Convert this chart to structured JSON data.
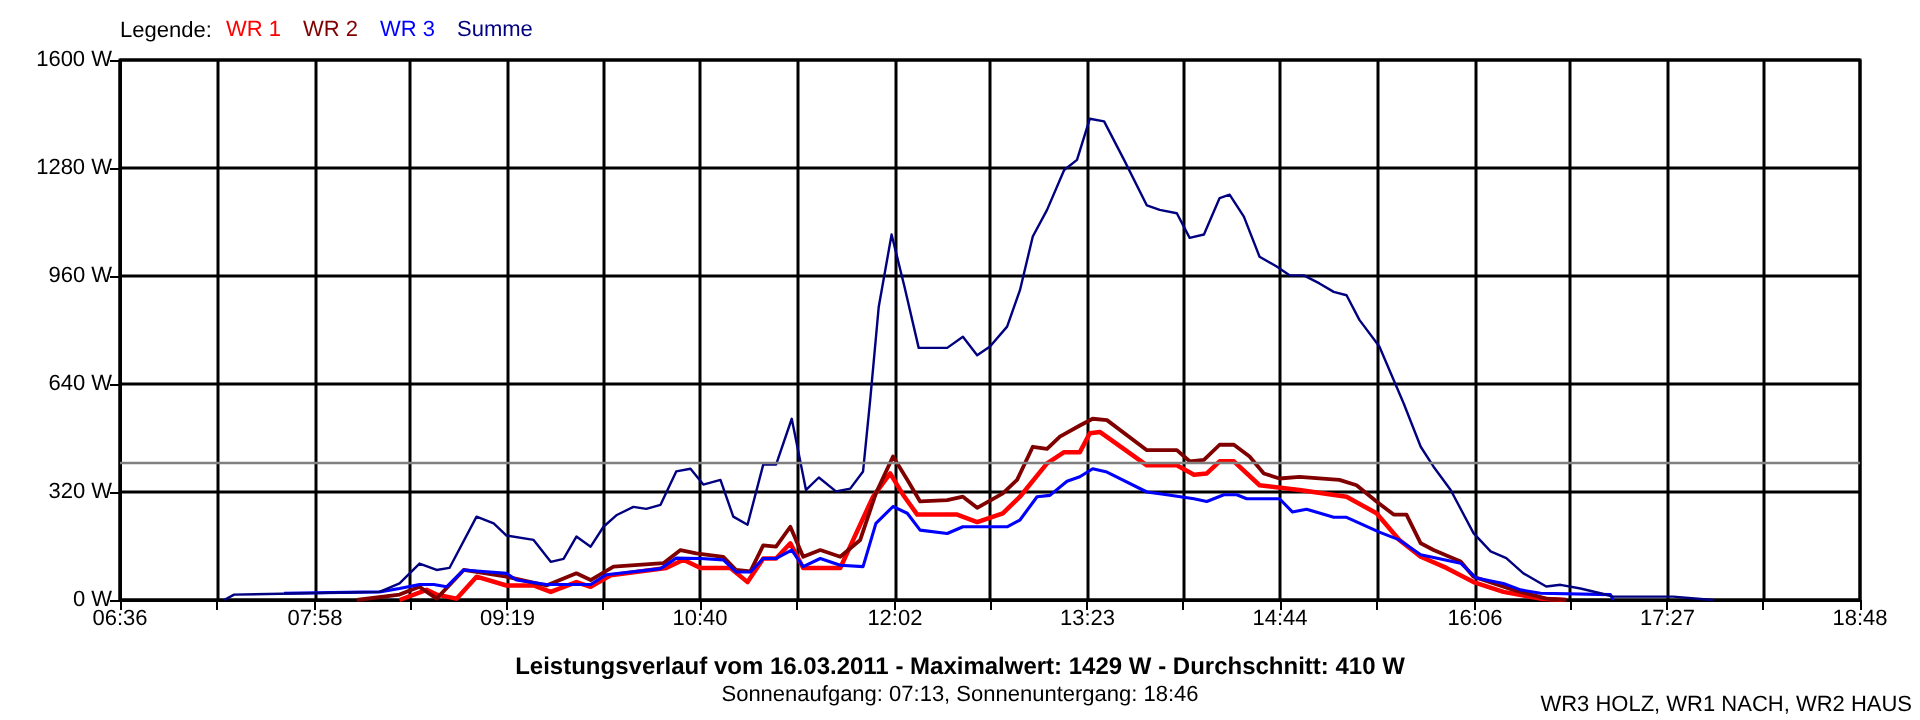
{
  "chart_data": {
    "type": "line",
    "title": "Leistungsverlauf vom 16.03.2011 - Maximalwert: 1429 W - Durchschnitt: 410 W",
    "subtitle": "Sonnenaufgang: 07:13, Sonnenuntergang: 18:46",
    "legend_title": "Legende:",
    "annotations": [
      "WR3 HOLZ, WR1 NACH, WR2 HAUS"
    ],
    "legend": "top left",
    "grid": true,
    "marker": "none",
    "line_style": "solid",
    "xlim": [
      6.6,
      18.8
    ],
    "xticks": [
      {
        "value": 6.6,
        "label": "06:36"
      },
      {
        "value": 7.2778,
        "label": null
      },
      {
        "value": 7.9667,
        "label": "07:58"
      },
      {
        "value": 8.6333,
        "label": null
      },
      {
        "value": 9.3167,
        "label": "09:19"
      },
      {
        "value": 9.9889,
        "label": null
      },
      {
        "value": 10.6667,
        "label": "10:40"
      },
      {
        "value": 11.3444,
        "label": null
      },
      {
        "value": 12.0333,
        "label": "12:02"
      },
      {
        "value": 12.7,
        "label": null
      },
      {
        "value": 13.3833,
        "label": "13:23"
      },
      {
        "value": 14.0556,
        "label": null
      },
      {
        "value": 14.7333,
        "label": "14:44"
      },
      {
        "value": 15.4111,
        "label": null
      },
      {
        "value": 16.1,
        "label": "16:06"
      },
      {
        "value": 16.7667,
        "label": null
      },
      {
        "value": 17.45,
        "label": "17:27"
      },
      {
        "value": 18.1222,
        "label": null
      },
      {
        "value": 18.8,
        "label": "18:48"
      }
    ],
    "ylim": [
      0,
      1600
    ],
    "yticks": [
      {
        "value": 0,
        "label": "0 W"
      },
      {
        "value": 320,
        "label": "320 W"
      },
      {
        "value": 640,
        "label": "640 W"
      },
      {
        "value": 960,
        "label": "960 W"
      },
      {
        "value": 1280,
        "label": "1280 W"
      },
      {
        "value": 1600,
        "label": "1600 W"
      }
    ],
    "ref_lines": [
      {
        "axis": "y",
        "value": 410,
        "color": "#808080"
      }
    ],
    "series": [
      {
        "name": "WR 1",
        "color": "#ff0000",
        "x": [
          8.56,
          8.75,
          8.82,
          8.96,
          9.1,
          9.31,
          9.5,
          9.62,
          9.8,
          9.9,
          10.04,
          10.43,
          10.55,
          10.67,
          10.88,
          11.0,
          11.11,
          11.2,
          11.3,
          11.39,
          11.65,
          11.88,
          12.0,
          12.09,
          12.19,
          12.47,
          12.61,
          12.79,
          12.91,
          13.1,
          13.22,
          13.33,
          13.4,
          13.47,
          13.8,
          14.01,
          14.13,
          14.22,
          14.31,
          14.41,
          14.59,
          14.87,
          15.2,
          15.41,
          15.57,
          15.72,
          15.9,
          16.09,
          16.3,
          16.56,
          16.74
        ],
        "values": [
          0,
          30,
          16,
          4,
          69,
          43,
          43,
          24,
          53,
          39,
          73,
          95,
          119,
          95,
          95,
          53,
          123,
          123,
          168,
          95,
          95,
          306,
          375,
          312,
          253,
          253,
          231,
          257,
          306,
          405,
          438,
          438,
          494,
          498,
          399,
          399,
          371,
          375,
          411,
          411,
          340,
          326,
          306,
          257,
          178,
          128,
          95,
          53,
          24,
          4,
          0
        ]
      },
      {
        "name": "WR 2",
        "color": "#800000",
        "x": [
          8.26,
          8.56,
          8.7,
          8.82,
          9.01,
          9.31,
          9.59,
          9.8,
          9.9,
          10.06,
          10.41,
          10.53,
          10.64,
          10.83,
          10.92,
          11.02,
          11.11,
          11.2,
          11.3,
          11.39,
          11.51,
          11.65,
          11.79,
          11.9,
          12.02,
          12.12,
          12.21,
          12.4,
          12.51,
          12.61,
          12.79,
          12.89,
          13.0,
          13.1,
          13.19,
          13.33,
          13.42,
          13.52,
          13.8,
          14.01,
          14.1,
          14.2,
          14.31,
          14.41,
          14.52,
          14.62,
          14.73,
          14.87,
          15.15,
          15.27,
          15.41,
          15.53,
          15.62,
          15.72,
          15.81,
          16.0,
          16.09,
          16.37,
          16.6,
          16.74
        ],
        "values": [
          0,
          16,
          39,
          4,
          89,
          69,
          43,
          79,
          59,
          99,
          109,
          148,
          138,
          128,
          89,
          85,
          162,
          158,
          217,
          128,
          148,
          128,
          178,
          316,
          425,
          356,
          292,
          296,
          306,
          273,
          316,
          356,
          454,
          448,
          484,
          517,
          537,
          533,
          444,
          444,
          411,
          415,
          460,
          460,
          425,
          375,
          360,
          365,
          356,
          340,
          292,
          253,
          253,
          168,
          148,
          114,
          69,
          30,
          4,
          0
        ]
      },
      {
        "name": "WR 3",
        "color": "#0000ff",
        "x": [
          7.75,
          8.42,
          8.56,
          8.7,
          8.8,
          8.89,
          9.01,
          9.31,
          9.38,
          9.59,
          9.9,
          10.01,
          10.39,
          10.5,
          10.67,
          10.83,
          10.92,
          11.02,
          11.11,
          11.2,
          11.31,
          11.39,
          11.51,
          11.65,
          11.81,
          11.9,
          12.02,
          12.12,
          12.21,
          12.4,
          12.51,
          12.82,
          12.91,
          13.03,
          13.12,
          13.24,
          13.33,
          13.42,
          13.52,
          13.8,
          13.94,
          14.13,
          14.22,
          14.34,
          14.43,
          14.5,
          14.73,
          14.82,
          14.92,
          15.11,
          15.2,
          15.43,
          15.57,
          15.72,
          16.0,
          16.11,
          16.3,
          16.42,
          16.56,
          17.05,
          17.07
        ],
        "values": [
          20,
          24,
          34,
          46,
          46,
          39,
          89,
          79,
          59,
          46,
          46,
          75,
          93,
          124,
          123,
          119,
          83,
          83,
          123,
          123,
          148,
          99,
          123,
          103,
          99,
          227,
          277,
          257,
          207,
          197,
          217,
          217,
          237,
          306,
          310,
          352,
          365,
          389,
          379,
          320,
          312,
          300,
          292,
          312,
          312,
          300,
          300,
          261,
          269,
          245,
          245,
          201,
          178,
          134,
          109,
          65,
          49,
          30,
          20,
          16,
          0
        ]
      },
      {
        "name": "Summe",
        "color": "#000080",
        "x": [
          7.33,
          7.4,
          8.42,
          8.56,
          8.7,
          8.82,
          8.91,
          9.1,
          9.22,
          9.31,
          9.5,
          9.62,
          9.71,
          9.8,
          9.9,
          9.99,
          10.08,
          10.2,
          10.29,
          10.39,
          10.5,
          10.6,
          10.69,
          10.81,
          10.9,
          11.0,
          11.11,
          11.2,
          11.31,
          11.41,
          11.5,
          11.62,
          11.72,
          11.81,
          11.86,
          11.92,
          12.01,
          12.1,
          12.2,
          12.4,
          12.51,
          12.61,
          12.7,
          12.82,
          12.91,
          13.0,
          13.1,
          13.22,
          13.31,
          13.4,
          13.5,
          13.64,
          13.8,
          13.89,
          14.01,
          14.1,
          14.2,
          14.31,
          14.38,
          14.48,
          14.59,
          14.71,
          14.8,
          14.9,
          15.01,
          15.11,
          15.2,
          15.29,
          15.43,
          15.6,
          15.72,
          15.81,
          15.93,
          16.09,
          16.21,
          16.32,
          16.44,
          16.6,
          16.7,
          16.84,
          16.98,
          17.07,
          17.49,
          17.77
        ],
        "values": [
          0,
          16,
          24,
          49,
          108,
          89,
          95,
          247,
          227,
          191,
          178,
          113,
          122,
          188,
          158,
          217,
          251,
          276,
          270,
          282,
          381,
          389,
          342,
          356,
          247,
          223,
          401,
          401,
          537,
          326,
          363,
          322,
          330,
          381,
          593,
          869,
          1083,
          929,
          747,
          747,
          780,
          725,
          751,
          810,
          918,
          1077,
          1156,
          1274,
          1304,
          1426,
          1418,
          1304,
          1169,
          1156,
          1146,
          1073,
          1083,
          1191,
          1201,
          1136,
          1017,
          988,
          962,
          962,
          938,
          913,
          903,
          830,
          751,
          583,
          454,
          395,
          326,
          198,
          144,
          124,
          79,
          40,
          45,
          34,
          20,
          10,
          10,
          0
        ]
      }
    ]
  }
}
